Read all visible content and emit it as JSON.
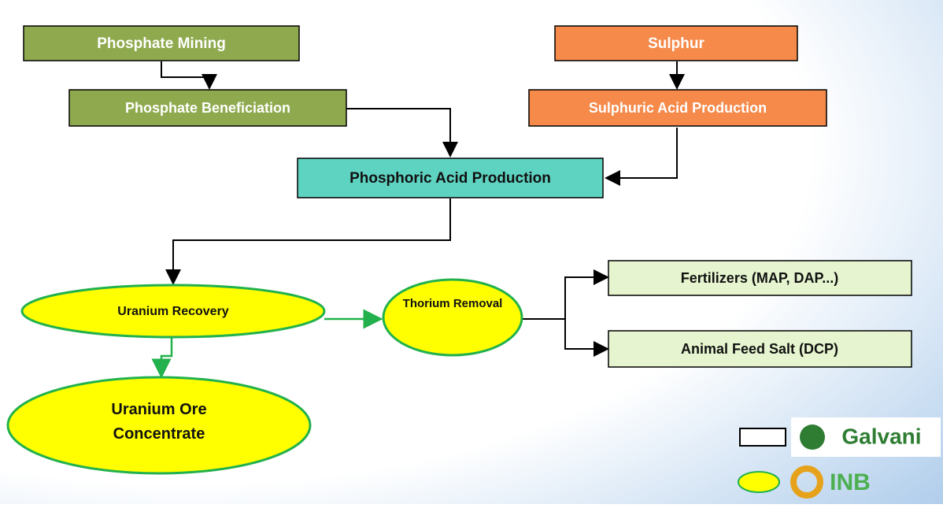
{
  "nodes": [
    {
      "label": "Phosphate Mining"
    },
    {
      "label": "Phosphate Beneficiation"
    },
    {
      "label": "Sulphur"
    },
    {
      "label": "Sulphuric Acid Production"
    },
    {
      "label": "Phosphoric Acid Production"
    },
    {
      "label": "Uranium Recovery"
    },
    {
      "label": "Thorium Removal"
    },
    {
      "label": "Fertilizers (MAP, DAP...)"
    },
    {
      "label": "Animal Feed Salt (DCP)"
    },
    {
      "label": "Uranium Ore Concentrate"
    }
  ],
  "legend": [
    {
      "label": "Galvani"
    },
    {
      "label": "INB"
    }
  ]
}
